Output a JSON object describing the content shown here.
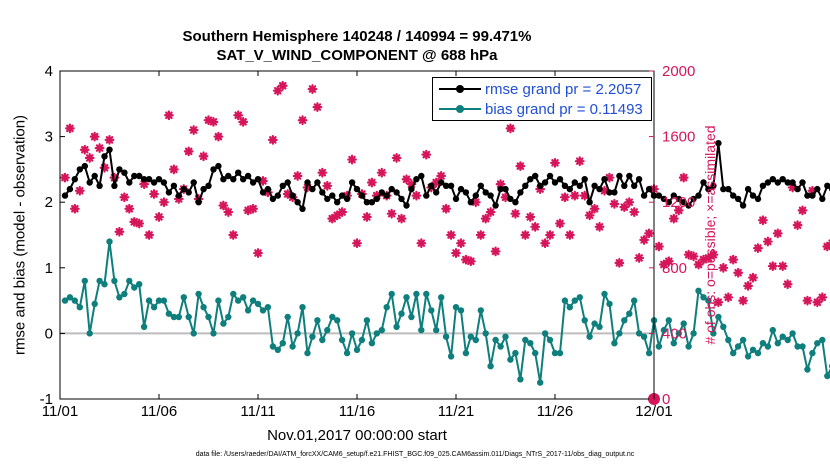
{
  "title": {
    "line1": "Southern Hemisphere 140248 / 140994 = 99.471%",
    "line2": "SAT_V_WIND_COMPONENT @ 688 hPa"
  },
  "footnote": "data file: /Users/raeder/DAI/ATM_forcXX/CAM6_setup/f.e21.FHIST_BGC.f09_025.CAM6assim.011/Diags_NTrS_2017-11/obs_diag_output.nc",
  "colors": {
    "rmse": "#000000",
    "bias": "#0e7f7c",
    "obs": "#d6155a",
    "zero": "#bdbdbd"
  },
  "chart_data": {
    "type": "line",
    "xlabel": "Nov.01,2017 00:00:00 start",
    "ylabel_left": "rmse and bias (model - observation)",
    "ylabel_right": "# of obs: o=possible; ×=assimilated",
    "ylim_left": [
      -1,
      4
    ],
    "ylim_right": [
      0,
      2000
    ],
    "xlim": [
      0,
      30
    ],
    "x_tick_values": [
      0,
      5,
      10,
      15,
      20,
      25,
      30
    ],
    "x_tick_labels": [
      "11/01",
      "11/06",
      "11/11",
      "11/16",
      "11/21",
      "11/26",
      "12/01"
    ],
    "y_ticks_left": [
      "-1",
      "0",
      "1",
      "2",
      "3",
      "4"
    ],
    "y_ticks_right": [
      "0",
      "400",
      "800",
      "1200",
      "1600",
      "2000"
    ],
    "legend": {
      "rmse_label": "rmse grand pr = 2.2057",
      "bias_label": "bias grand pr = 0.11493"
    },
    "x_start": 0.25,
    "x_step": 0.25,
    "series": [
      {
        "name": "rmse",
        "values": [
          2.1,
          2.2,
          2.35,
          2.5,
          2.55,
          2.3,
          2.4,
          2.25,
          2.7,
          2.8,
          2.25,
          2.5,
          2.45,
          2.3,
          2.4,
          2.4,
          2.35,
          2.35,
          2.3,
          2.35,
          2.3,
          2.15,
          2.25,
          2.1,
          2.2,
          2.15,
          2.3,
          2.0,
          2.2,
          2.25,
          2.5,
          2.55,
          2.35,
          2.4,
          2.35,
          2.45,
          2.35,
          2.4,
          2.3,
          2.35,
          2.15,
          2.2,
          2.05,
          2.1,
          2.25,
          2.3,
          2.1,
          2.0,
          1.9,
          2.3,
          2.2,
          2.3,
          2.15,
          2.05,
          2.1,
          2.0,
          2.1,
          2.05,
          2.3,
          2.2,
          2.1,
          2.0,
          2.0,
          2.05,
          2.15,
          2.1,
          2.2,
          2.15,
          2.05,
          1.95,
          2.2,
          2.35,
          2.4,
          2.1,
          2.25,
          2.15,
          2.3,
          2.25,
          2.25,
          2.05,
          2.2,
          2.15,
          2.0,
          2.1,
          2.25,
          2.15,
          2.1,
          1.95,
          2.2,
          2.2,
          2.05,
          2.0,
          2.15,
          2.25,
          2.35,
          2.4,
          2.25,
          2.3,
          2.4,
          2.3,
          2.35,
          2.25,
          2.2,
          2.3,
          2.25,
          2.35,
          2.0,
          2.25,
          2.2,
          2.35,
          2.15,
          2.15,
          2.4,
          2.25,
          2.4,
          2.25,
          2.35,
          2.1,
          2.2,
          2.1,
          2.1,
          2.05,
          2.0,
          2.1,
          2.05,
          2.0,
          1.95,
          2.05,
          2.1,
          2.3,
          2.2,
          2.25,
          2.9,
          2.2,
          2.2,
          2.1,
          2.05,
          1.95,
          2.2,
          2.1,
          2.05,
          2.25,
          2.3,
          2.35,
          2.3,
          2.35,
          2.3,
          2.3,
          2.2,
          2.3,
          2.1,
          2.1,
          2.2,
          2.05,
          2.25,
          2.2,
          2.2,
          2.15,
          2.05,
          2.1,
          2.2,
          1.95,
          2.25
        ]
      },
      {
        "name": "bias",
        "values": [
          0.5,
          0.55,
          0.5,
          0.4,
          0.8,
          0.0,
          0.45,
          0.8,
          0.75,
          1.4,
          0.8,
          0.55,
          0.6,
          0.8,
          0.7,
          0.75,
          0.1,
          0.5,
          0.4,
          0.5,
          0.5,
          0.3,
          0.25,
          0.25,
          0.55,
          0.25,
          0.0,
          0.6,
          0.4,
          0.25,
          0.0,
          0.5,
          0.15,
          0.25,
          0.6,
          0.5,
          0.55,
          0.35,
          0.5,
          0.45,
          0.35,
          0.4,
          -0.2,
          -0.25,
          -0.15,
          0.25,
          -0.2,
          0.0,
          0.4,
          -0.3,
          -0.05,
          0.2,
          -0.1,
          0.05,
          0.25,
          0.2,
          -0.1,
          -0.3,
          0.0,
          -0.25,
          -0.1,
          0.2,
          -0.15,
          0.0,
          0.05,
          0.4,
          0.6,
          0.1,
          0.3,
          0.55,
          0.25,
          0.6,
          0.05,
          0.6,
          0.35,
          0.05,
          0.55,
          -0.05,
          -0.35,
          0.4,
          0.35,
          -0.3,
          -0.05,
          -0.1,
          0.35,
          0.0,
          -0.5,
          -0.1,
          -0.2,
          -0.05,
          -0.4,
          -0.3,
          -0.7,
          -0.1,
          -0.15,
          -0.3,
          -0.75,
          0.0,
          -0.1,
          -0.3,
          -0.3,
          0.5,
          0.4,
          0.5,
          0.55,
          0.2,
          -0.05,
          0.15,
          0.1,
          0.6,
          0.45,
          -0.15,
          0.0,
          0.2,
          0.3,
          0.5,
          0.0,
          -0.05,
          -0.3,
          0.2,
          -0.2,
          0.05,
          0.2,
          -0.15,
          0.0,
          0.15,
          -0.2,
          0.0,
          0.65,
          0.55,
          0.5,
          0.0,
          0.25,
          0.1,
          -0.1,
          -0.3,
          -0.2,
          -0.1,
          -0.35,
          -0.25,
          -0.3,
          -0.15,
          -0.2,
          0.05,
          -0.15,
          -0.05,
          -0.1,
          0.0,
          -0.2,
          -0.2,
          -0.55,
          -0.3,
          -0.15,
          -0.1,
          -0.65,
          -0.5,
          -0.45,
          -0.4,
          0.05,
          0.0,
          0.5
        ]
      },
      {
        "name": "obs_assimilated",
        "values": [
          1350,
          1650,
          1160,
          1270,
          1520,
          1470,
          1600,
          1530,
          1410,
          1580,
          1350,
          1020,
          1230,
          1160,
          1080,
          1070,
          1310,
          1000,
          1250,
          1110,
          1200,
          1730,
          1400,
          1220,
          1280,
          1510,
          1640,
          1220,
          1480,
          1700,
          1690,
          1600,
          1180,
          1140,
          1000,
          1730,
          1690,
          1150,
          1160,
          890,
          1330,
          1260,
          1580,
          1880,
          1910,
          1250,
          1230,
          1360,
          1700,
          1290,
          1890,
          1780,
          1380,
          1300,
          1100,
          1120,
          1140,
          1240,
          1460,
          950,
          1250,
          1110,
          1320,
          1240,
          1380,
          1240,
          1130,
          1470,
          1100,
          1340,
          1310,
          1240,
          950,
          1490,
          1290,
          1320,
          1360,
          1160,
          1000,
          890,
          950,
          850,
          840,
          1200,
          1000,
          1100,
          1140,
          900,
          1310,
          1230,
          1650,
          1130,
          1420,
          1000,
          1110,
          1050,
          1280,
          950,
          1000,
          1440,
          1070,
          1230,
          1000,
          1240,
          1450,
          1240,
          1120,
          1160,
          1050,
          1270,
          1350,
          1190,
          830,
          1170,
          1200,
          1140,
          860,
          970,
          1010,
          1280,
          930,
          820,
          840,
          1100,
          1150,
          1350,
          880,
          870,
          820,
          850,
          860,
          880,
          590,
          800,
          620,
          850,
          770,
          600,
          690,
          740,
          920,
          1090,
          960,
          810,
          1010,
          810,
          700,
          1290,
          1060,
          1150,
          600,
          1270,
          590,
          620,
          930,
          950,
          730,
          1080,
          860,
          870,
          860,
          1370,
          940,
          950
        ]
      },
      {
        "name": "obs_possible",
        "values": [
          0
        ]
      }
    ]
  }
}
